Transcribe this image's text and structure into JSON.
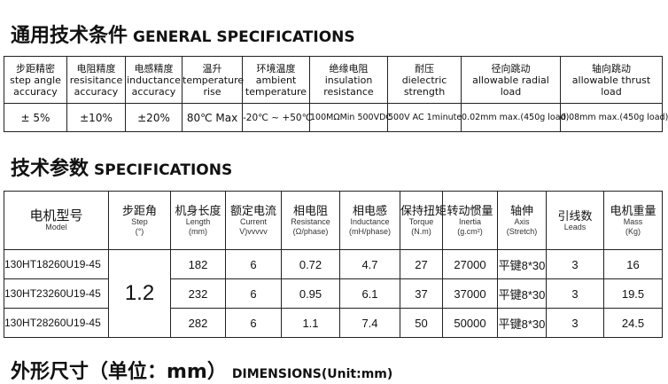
{
  "general": {
    "title_zh": "通用技术条件",
    "title_en": "GENERAL SPECIFICATIONS",
    "headers": [
      [
        "步距精密",
        "step angle",
        "accuracy"
      ],
      [
        "电阻精度",
        "resisitance",
        "accuracy"
      ],
      [
        "电感精度",
        "inductance",
        "accuracy"
      ],
      [
        "温升",
        "temperature",
        "rise"
      ],
      [
        "环境温度",
        "ambient",
        "temperature"
      ],
      [
        "绝缘电阻",
        "insulation",
        "resistance"
      ],
      [
        "耐压",
        "dielectric",
        "strength"
      ],
      [
        "径向跳动",
        "allowable radial",
        "load"
      ],
      [
        "轴向跳动",
        "allowable thrust",
        "load"
      ]
    ],
    "values": [
      "± 5%",
      "±10%",
      "±20%",
      "80℃ Max",
      "-20℃ ~ +50℃",
      "100MΩMin 500VDC",
      "500V AC 1minute",
      "0.02mm max.(450g load)",
      "0.08mm max.(450g load)"
    ]
  },
  "specs": {
    "title_zh": "技术参数",
    "title_en": "SPECIFICATIONS",
    "headers": [
      [
        "电机型号",
        "Model",
        ""
      ],
      [
        "步距角",
        "Step",
        "(°)"
      ],
      [
        "机身长度",
        "Length",
        "(mm)"
      ],
      [
        "额定电流",
        "Current",
        "V)vvvvv"
      ],
      [
        "相电阻",
        "Resistance",
        "(Ω/phase)"
      ],
      [
        "相电感",
        "Inductance",
        "(mH/phase)"
      ],
      [
        "保持扭矩",
        "Torque",
        "(N.m)"
      ],
      [
        "转动惯量",
        "Inertia",
        "(g.cm²)"
      ],
      [
        "轴伸",
        "Axis",
        "(Stretch)"
      ],
      [
        "引线数",
        "Leads",
        ""
      ],
      [
        "电机重量",
        "Mass",
        "(Kg)"
      ]
    ],
    "step": "1.2",
    "rows": [
      [
        "130HT18260U19-45",
        "182",
        "6",
        "0.72",
        "4.7",
        "27",
        "27000",
        "平键8*30",
        "3",
        "16"
      ],
      [
        "130HT23260U19-45",
        "232",
        "6",
        "0.95",
        "6.1",
        "37",
        "37000",
        "平键8*30",
        "3",
        "19.5"
      ],
      [
        "130HT28260U19-45",
        "282",
        "6",
        "1.1",
        "7.4",
        "50",
        "50000",
        "平键8*30",
        "3",
        "24.5"
      ]
    ]
  },
  "dimensions": {
    "title_zh": "外形尺寸（单位：mm）",
    "title_en": "DIMENSIONS(Unit:mm)"
  }
}
